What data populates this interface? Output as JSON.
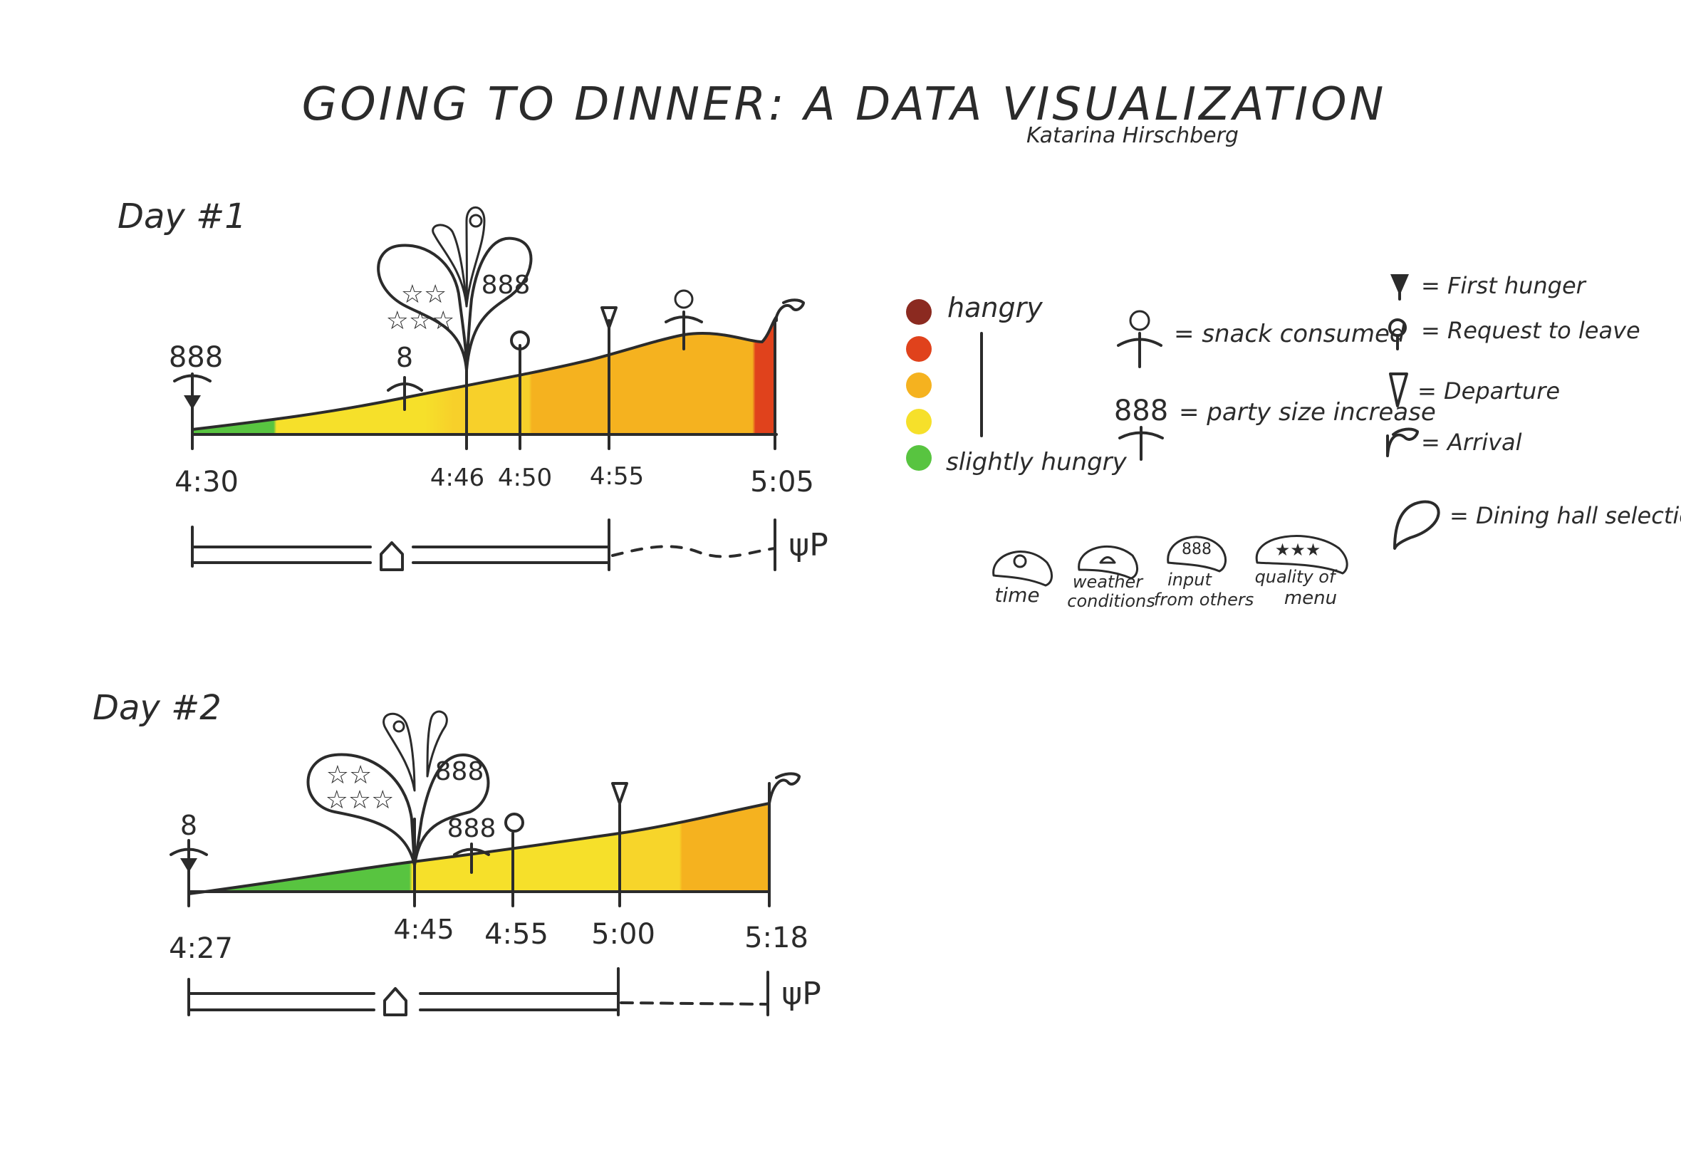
{
  "title": "GOING TO DINNER: A DATA VISUALIZATION",
  "author": "Katarina Hirschberg",
  "colors": {
    "hunger_scale": [
      "#8b2a20",
      "#e0421c",
      "#f5b21f",
      "#f6e02a",
      "#58c440"
    ]
  },
  "legend": {
    "hangry": "hangry",
    "slightly_hungry": "slightly hungry",
    "snack": "= snack consumed",
    "party": "= party size increase",
    "first_hunger": "= First hunger",
    "request": "= Request to leave",
    "departure": "= Departure",
    "arrival": "= Arrival",
    "dining_hall": "= Dining hall selection",
    "factors": {
      "time": "time",
      "weather_1": "weather",
      "weather_2": "conditions",
      "input_1": "input",
      "input_2": "from others",
      "quality_1": "quality of",
      "quality_2": "menu"
    }
  },
  "days": [
    {
      "label": "Day #1",
      "ticks": [
        "4:30",
        "4:46",
        "4:50",
        "4:55",
        "5:05"
      ]
    },
    {
      "label": "Day #2",
      "ticks": [
        "4:27",
        "4:45",
        "4:55",
        "5:00",
        "5:18"
      ]
    }
  ],
  "party_icon": "888",
  "single_icon": "8",
  "dining_icon": "ψP"
}
